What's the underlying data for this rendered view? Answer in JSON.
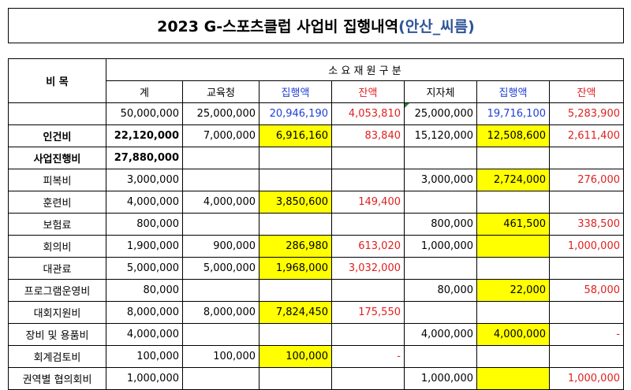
{
  "title": {
    "main": "2023 G-스포츠클럽 사업비 집행내역",
    "sub": "(안산_씨름)"
  },
  "headers": {
    "category": "비 목",
    "group": "소 요 재 원 구 분",
    "cols": [
      "계",
      "교육청",
      "집행액",
      "잔액",
      "지자체",
      "집행액",
      "잔액"
    ]
  },
  "totals": [
    "50,000,000",
    "25,000,000",
    "20,946,190",
    "4,053,810",
    "25,000,000",
    "19,716,100",
    "5,283,900"
  ],
  "rows": [
    {
      "label": "인건비",
      "bold": true,
      "cells": [
        "22,120,000",
        "7,000,000",
        "6,916,160",
        "83,840",
        "15,120,000",
        "12,508,600",
        "2,611,400"
      ]
    },
    {
      "label": "사업진행비",
      "bold": true,
      "cells": [
        "27,880,000",
        "",
        "",
        "",
        "",
        "",
        ""
      ]
    },
    {
      "label": "피복비",
      "bold": false,
      "cells": [
        "3,000,000",
        "",
        "",
        "",
        "3,000,000",
        "2,724,000",
        "276,000"
      ]
    },
    {
      "label": "훈련비",
      "bold": false,
      "cells": [
        "4,000,000",
        "4,000,000",
        "3,850,600",
        "149,400",
        "",
        "",
        ""
      ]
    },
    {
      "label": "보험료",
      "bold": false,
      "cells": [
        "800,000",
        "",
        "",
        "",
        "800,000",
        "461,500",
        "338,500"
      ]
    },
    {
      "label": "회의비",
      "bold": false,
      "cells": [
        "1,900,000",
        "900,000",
        "286,980",
        "613,020",
        "1,000,000",
        "",
        "1,000,000"
      ]
    },
    {
      "label": "대관료",
      "bold": false,
      "cells": [
        "5,000,000",
        "5,000,000",
        "1,968,000",
        "3,032,000",
        "",
        "",
        ""
      ]
    },
    {
      "label": "프로그램운영비",
      "bold": false,
      "cells": [
        "80,000",
        "",
        "",
        "",
        "80,000",
        "22,000",
        "58,000"
      ]
    },
    {
      "label": "대회지원비",
      "bold": false,
      "cells": [
        "8,000,000",
        "8,000,000",
        "7,824,450",
        "175,550",
        "",
        "",
        ""
      ]
    },
    {
      "label": "장비 및 용품비",
      "bold": false,
      "cells": [
        "4,000,000",
        "",
        "",
        "",
        "4,000,000",
        "4,000,000",
        "-"
      ]
    },
    {
      "label": "회계검토비",
      "bold": false,
      "cells": [
        "100,000",
        "100,000",
        "100,000",
        "-",
        "",
        "",
        ""
      ]
    },
    {
      "label": "권역별 협의회비",
      "bold": false,
      "cells": [
        "1,000,000",
        "",
        "",
        "",
        "1,000,000",
        "",
        "1,000,000"
      ]
    }
  ],
  "colors": {
    "highlight": "#ffff00",
    "blue_text": "#1f3fd6",
    "red_text": "#e02020",
    "title_sub": "#2f5597"
  }
}
